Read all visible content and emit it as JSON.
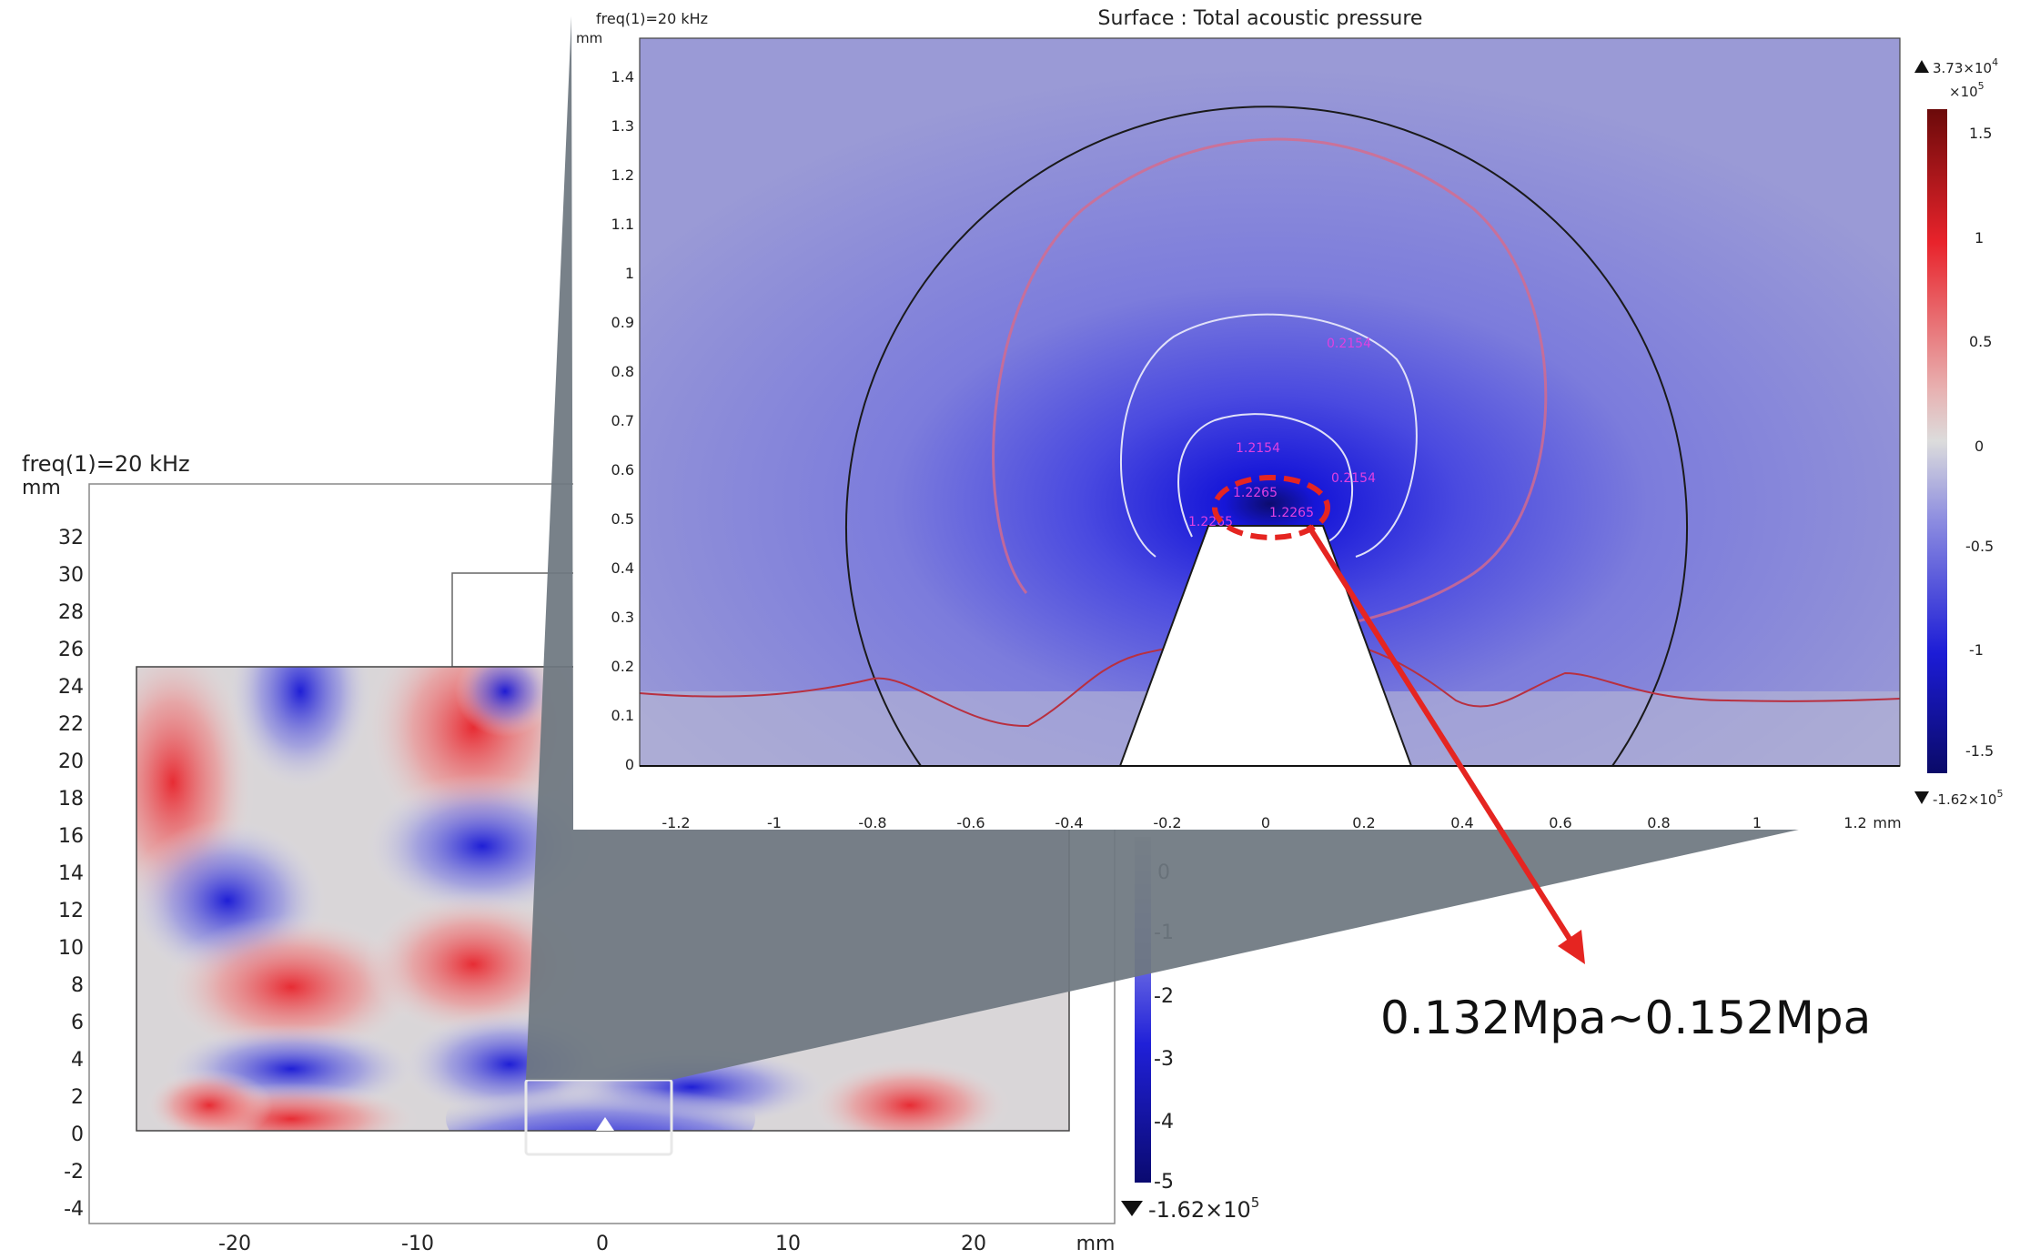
{
  "main_plot": {
    "freq_label": "freq(1)=20 kHz",
    "unit": "mm",
    "y_ticks": [
      "32",
      "30",
      "28",
      "26",
      "24",
      "22",
      "20",
      "18",
      "16",
      "14",
      "12",
      "10",
      "8",
      "6",
      "4",
      "2",
      "0",
      "-2",
      "-4"
    ],
    "x_ticks": [
      "-20",
      "-10",
      "0",
      "10",
      "20"
    ],
    "x_unit": "mm",
    "colorbar_ticks": [
      "0",
      "-1",
      "-2",
      "-3",
      "-4",
      "-5"
    ],
    "colorbar_min": "-1.62×10",
    "colorbar_min_exp": "5"
  },
  "inset": {
    "title": "Surface : Total acoustic pressure",
    "freq_label": "freq(1)=20 kHz",
    "unit": "mm",
    "y_ticks": [
      "1.4",
      "1.3",
      "1.2",
      "1.1",
      "1",
      "0.9",
      "0.8",
      "0.7",
      "0.6",
      "0.5",
      "0.4",
      "0.3",
      "0.2",
      "0.1",
      "0"
    ],
    "x_ticks": [
      "-1.2",
      "-1",
      "-0.8",
      "-0.6",
      "-0.4",
      "-0.2",
      "0",
      "0.2",
      "0.4",
      "0.6",
      "0.8",
      "1",
      "1.2"
    ],
    "x_unit": "mm",
    "colorbar_max": "3.73×10",
    "colorbar_max_exp": "4",
    "colorbar_scale": "×10",
    "colorbar_scale_exp": "5",
    "colorbar_ticks": [
      "1.5",
      "1",
      "0.5",
      "0",
      "-0.5",
      "-1",
      "-1.5"
    ],
    "colorbar_min": "-1.62×10",
    "colorbar_min_exp": "5",
    "contour_labels": [
      "0.2154",
      "1.2154",
      "0.2154",
      "1.2265",
      "1.2265",
      "1.2265"
    ]
  },
  "annotation": {
    "text": "0.132Mpa~0.152Mpa",
    "color": "#e52521"
  },
  "colors": {
    "positive": "#e8232b",
    "negative": "#1a1adc",
    "neutral": "#d8d8d8",
    "zoom_band": "#6e7780"
  }
}
